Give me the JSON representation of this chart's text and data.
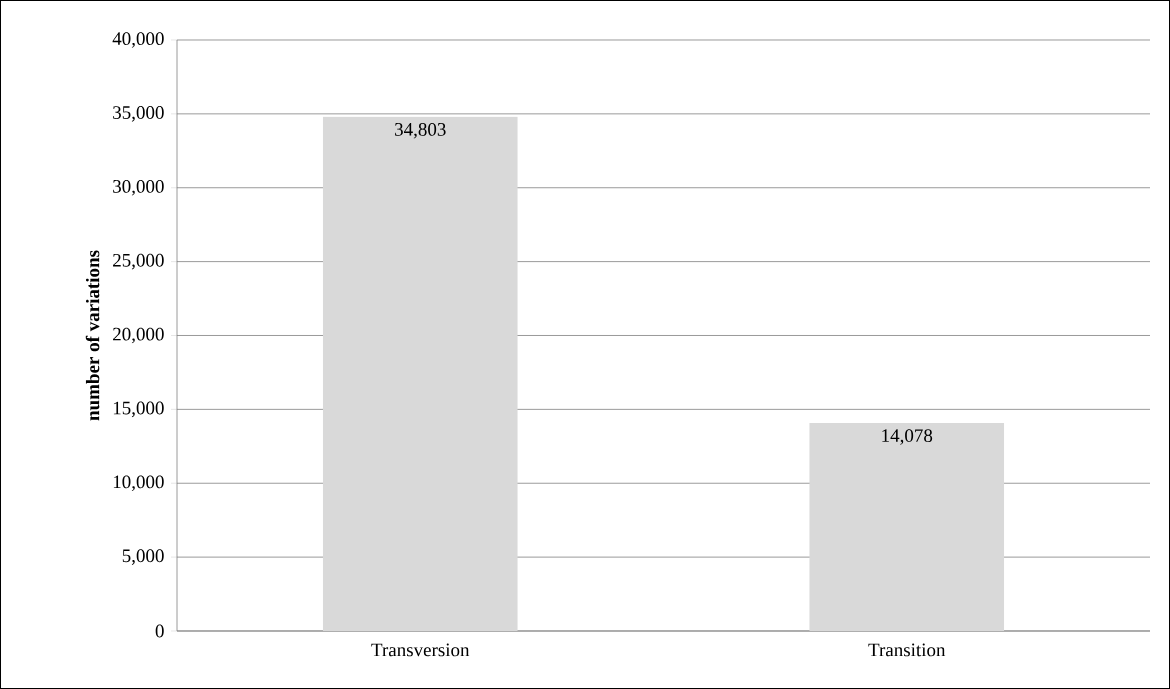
{
  "chart_data": {
    "type": "bar",
    "ylabel": "number of variations",
    "categories": [
      "Transversion",
      "Transition"
    ],
    "values": [
      34803,
      14078
    ],
    "value_labels": [
      "34,803",
      "14,078"
    ],
    "color": "#d9d9d9",
    "ylim": [
      0,
      40000
    ],
    "yticks": [
      {
        "value": 0,
        "label": "0"
      },
      {
        "value": 5000,
        "label": "5,000"
      },
      {
        "value": 10000,
        "label": "10,000"
      },
      {
        "value": 15000,
        "label": "15,000"
      },
      {
        "value": 20000,
        "label": "20,000"
      },
      {
        "value": 25000,
        "label": "25,000"
      },
      {
        "value": 30000,
        "label": "30,000"
      },
      {
        "value": 35000,
        "label": "35,000"
      },
      {
        "value": 40000,
        "label": "40,000"
      }
    ],
    "grid": "y"
  }
}
